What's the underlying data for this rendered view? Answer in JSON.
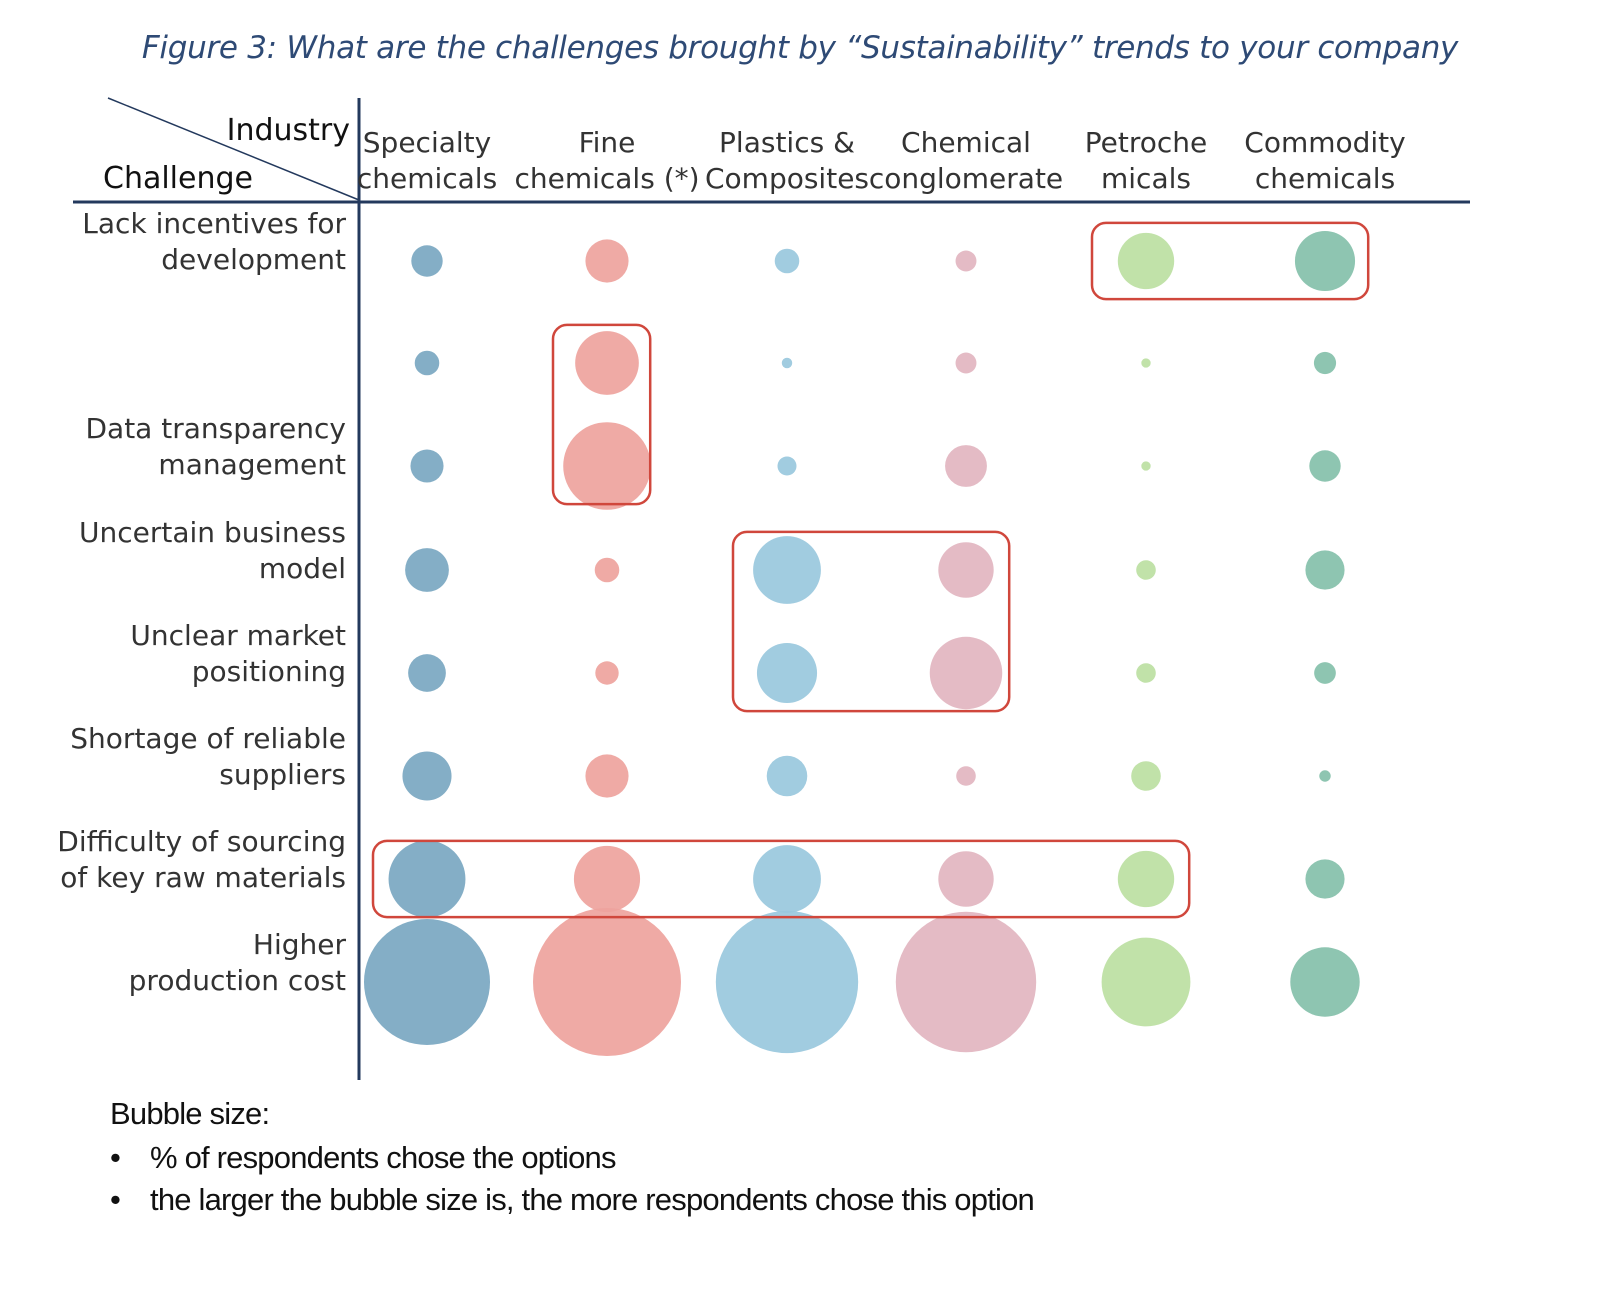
{
  "title": "Figure 3: What are the challenges brought by “Sustainability” trends to your company",
  "chart_data": {
    "type": "bubble-matrix",
    "corner": {
      "column_axis": "Industry",
      "row_axis": "Challenge"
    },
    "columns": [
      {
        "lines": [
          "Specialty",
          "chemicals"
        ],
        "color": "#7aa7c1"
      },
      {
        "lines": [
          "Fine",
          "chemicals (*)"
        ],
        "color": "#eea39d"
      },
      {
        "lines": [
          "Plastics &",
          "Composites"
        ],
        "color": "#99c8dd"
      },
      {
        "lines": [
          "Chemical",
          "conglomerate"
        ],
        "color": "#e2b5c0"
      },
      {
        "lines": [
          "Petroche",
          "micals"
        ],
        "color": "#bcdfa2"
      },
      {
        "lines": [
          "Commodity",
          "chemicals"
        ],
        "color": "#84c0aa"
      }
    ],
    "rows": [
      {
        "lines": [
          "Lack incentives for",
          "development"
        ],
        "values": [
          0.9,
          1.7,
          0.55,
          0.4,
          2.9,
          3.3
        ]
      },
      {
        "lines": [],
        "values": [
          0.55,
          3.7,
          0.1,
          0.4,
          0.08,
          0.45
        ]
      },
      {
        "lines": [
          "Data transparency",
          "management"
        ],
        "values": [
          1.0,
          7.0,
          0.33,
          1.6,
          0.08,
          0.9
        ]
      },
      {
        "lines": [
          "Uncertain business",
          "model"
        ],
        "values": [
          1.75,
          0.55,
          4.2,
          2.8,
          0.35,
          1.4
        ]
      },
      {
        "lines": [
          "Unclear market",
          "positioning"
        ],
        "values": [
          1.3,
          0.5,
          3.3,
          4.8,
          0.35,
          0.43
        ]
      },
      {
        "lines": [
          "Shortage of reliable",
          "suppliers"
        ],
        "values": [
          2.2,
          1.7,
          1.5,
          0.35,
          0.8,
          0.12
        ]
      },
      {
        "lines": [
          "Difficulty of sourcing",
          "of key raw materials"
        ],
        "values": [
          5.4,
          4.0,
          4.2,
          2.8,
          2.9,
          1.4
        ]
      },
      {
        "lines": [
          "Higher",
          "production cost"
        ],
        "values": [
          14.5,
          20.0,
          18.5,
          18.0,
          7.2,
          4.4
        ]
      }
    ],
    "highlights": [
      {
        "rows": [
          0,
          0
        ],
        "cols": [
          4,
          5
        ]
      },
      {
        "rows": [
          1,
          2
        ],
        "cols": [
          1,
          1
        ]
      },
      {
        "rows": [
          3,
          4
        ],
        "cols": [
          2,
          3
        ]
      },
      {
        "rows": [
          6,
          6
        ],
        "cols": [
          0,
          4
        ]
      }
    ],
    "highlight_color": "#d0473c"
  },
  "legend": {
    "title": "Bubble size:",
    "items": [
      "% of respondents chose the options",
      "the larger the bubble size is, the more respondents chose this option"
    ]
  }
}
